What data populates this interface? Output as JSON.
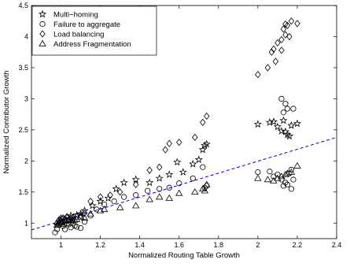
{
  "chart_data": {
    "type": "scatter",
    "xlabel": "Normalized Routing Table Growth",
    "ylabel": "Normalized Contributor Growth",
    "xlim": [
      0.85,
      2.4
    ],
    "ylim": [
      0.75,
      4.5
    ],
    "xticks": [
      1,
      1.2,
      1.4,
      1.6,
      1.8,
      2,
      2.2,
      2.4
    ],
    "yticks": [
      1,
      1.5,
      2,
      2.5,
      3,
      3.5,
      4,
      4.5
    ],
    "xtick_labels": [
      "1",
      "1.2",
      "1.4",
      "1.6",
      "1.8",
      "2",
      "2.2",
      "2.4"
    ],
    "ytick_labels": [
      "1",
      "1.5",
      "2",
      "2.5",
      "3",
      "3.5",
      "4",
      "4.5"
    ],
    "grid": false,
    "legend_position": "top-left",
    "series": [
      {
        "name": "Multi−homing",
        "marker": "star",
        "points": [
          [
            0.98,
            0.97
          ],
          [
            0.99,
            1.02
          ],
          [
            1.0,
            1.05
          ],
          [
            1.01,
            1.08
          ],
          [
            1.02,
            1.04
          ],
          [
            1.03,
            1.1
          ],
          [
            1.04,
            1.06
          ],
          [
            1.05,
            1.12
          ],
          [
            1.06,
            1.09
          ],
          [
            1.08,
            1.13
          ],
          [
            1.1,
            1.15
          ],
          [
            1.12,
            1.2
          ],
          [
            1.16,
            1.28
          ],
          [
            1.2,
            1.35
          ],
          [
            1.24,
            1.4
          ],
          [
            1.28,
            1.55
          ],
          [
            1.32,
            1.65
          ],
          [
            1.38,
            1.7
          ],
          [
            1.45,
            1.65
          ],
          [
            1.5,
            1.72
          ],
          [
            1.55,
            1.78
          ],
          [
            1.59,
            1.98
          ],
          [
            1.62,
            1.82
          ],
          [
            1.67,
            1.95
          ],
          [
            1.7,
            2.02
          ],
          [
            1.72,
            2.18
          ],
          [
            1.73,
            2.25
          ],
          [
            1.74,
            2.27
          ],
          [
            2.0,
            2.59
          ],
          [
            2.06,
            2.62
          ],
          [
            2.08,
            2.63
          ],
          [
            2.1,
            2.55
          ],
          [
            2.12,
            2.48
          ],
          [
            2.13,
            2.65
          ],
          [
            2.14,
            2.47
          ],
          [
            2.15,
            2.42
          ],
          [
            2.16,
            2.4
          ],
          [
            2.17,
            2.57
          ],
          [
            2.2,
            2.6
          ]
        ]
      },
      {
        "name": "Failure to aggregate",
        "marker": "circle",
        "points": [
          [
            0.97,
            0.85
          ],
          [
            0.98,
            0.9
          ],
          [
            0.99,
            0.97
          ],
          [
            1.0,
            1.0
          ],
          [
            1.01,
            0.95
          ],
          [
            1.02,
            0.9
          ],
          [
            1.03,
            1.05
          ],
          [
            1.04,
            0.98
          ],
          [
            1.05,
            0.93
          ],
          [
            1.06,
            1.0
          ],
          [
            1.07,
            0.96
          ],
          [
            1.08,
            0.94
          ],
          [
            1.1,
            0.92
          ],
          [
            1.12,
            1.02
          ],
          [
            1.15,
            1.12
          ],
          [
            1.18,
            1.22
          ],
          [
            1.22,
            1.3
          ],
          [
            1.27,
            1.35
          ],
          [
            1.32,
            1.42
          ],
          [
            1.38,
            1.45
          ],
          [
            1.44,
            1.52
          ],
          [
            1.5,
            1.55
          ],
          [
            1.55,
            1.57
          ],
          [
            1.6,
            1.64
          ],
          [
            1.67,
            1.72
          ],
          [
            1.72,
            1.9
          ],
          [
            1.73,
            1.57
          ],
          [
            1.74,
            1.6
          ],
          [
            2.0,
            1.82
          ],
          [
            2.06,
            1.83
          ],
          [
            2.08,
            1.75
          ],
          [
            2.1,
            1.78
          ],
          [
            2.12,
            1.7
          ],
          [
            2.13,
            1.6
          ],
          [
            2.14,
            1.65
          ],
          [
            2.15,
            1.62
          ],
          [
            2.16,
            1.8
          ],
          [
            2.17,
            1.86
          ],
          [
            2.18,
            1.7
          ],
          [
            2.12,
            3.0
          ],
          [
            2.14,
            2.92
          ],
          [
            2.15,
            2.84
          ],
          [
            2.18,
            2.84
          ],
          [
            2.13,
            2.78
          ],
          [
            2.17,
            1.55
          ]
        ]
      },
      {
        "name": "Load balancing",
        "marker": "diamond",
        "points": [
          [
            0.98,
            1.0
          ],
          [
            0.99,
            1.05
          ],
          [
            1.0,
            1.08
          ],
          [
            1.01,
            1.02
          ],
          [
            1.02,
            1.06
          ],
          [
            1.03,
            1.1
          ],
          [
            1.04,
            1.05
          ],
          [
            1.05,
            1.08
          ],
          [
            1.06,
            1.05
          ],
          [
            1.08,
            1.1
          ],
          [
            1.1,
            1.12
          ],
          [
            1.12,
            1.16
          ],
          [
            1.15,
            1.35
          ],
          [
            1.2,
            1.42
          ],
          [
            1.25,
            1.45
          ],
          [
            1.3,
            1.5
          ],
          [
            1.38,
            1.62
          ],
          [
            1.45,
            1.85
          ],
          [
            1.5,
            1.9
          ],
          [
            1.53,
            2.18
          ],
          [
            1.55,
            2.28
          ],
          [
            1.6,
            2.3
          ],
          [
            1.68,
            2.38
          ],
          [
            1.72,
            2.62
          ],
          [
            1.74,
            2.72
          ],
          [
            2.0,
            3.39
          ],
          [
            2.05,
            3.5
          ],
          [
            2.07,
            3.75
          ],
          [
            2.08,
            3.8
          ],
          [
            2.09,
            3.6
          ],
          [
            2.1,
            3.9
          ],
          [
            2.12,
            3.78
          ],
          [
            2.13,
            4.12
          ],
          [
            2.14,
            4.03
          ],
          [
            2.15,
            4.18
          ],
          [
            2.16,
            4.0
          ],
          [
            2.17,
            4.25
          ],
          [
            2.2,
            4.21
          ],
          [
            2.12,
            3.95
          ],
          [
            2.14,
            4.2
          ]
        ]
      },
      {
        "name": "Address Fragmentation",
        "marker": "triangle",
        "points": [
          [
            0.98,
            0.97
          ],
          [
            0.99,
            1.0
          ],
          [
            1.0,
            1.02
          ],
          [
            1.01,
            0.98
          ],
          [
            1.02,
            1.03
          ],
          [
            1.03,
            1.0
          ],
          [
            1.05,
            1.04
          ],
          [
            1.07,
            1.05
          ],
          [
            1.08,
            1.06
          ],
          [
            1.1,
            1.1
          ],
          [
            1.12,
            1.08
          ],
          [
            1.15,
            1.15
          ],
          [
            1.2,
            1.2
          ],
          [
            1.22,
            1.22
          ],
          [
            1.3,
            1.25
          ],
          [
            1.38,
            1.28
          ],
          [
            1.45,
            1.38
          ],
          [
            1.5,
            1.42
          ],
          [
            1.55,
            1.4
          ],
          [
            1.6,
            1.48
          ],
          [
            1.68,
            1.5
          ],
          [
            1.72,
            1.55
          ],
          [
            1.73,
            1.52
          ],
          [
            1.74,
            1.62
          ],
          [
            2.0,
            1.72
          ],
          [
            2.05,
            1.7
          ],
          [
            2.08,
            1.68
          ],
          [
            2.1,
            1.72
          ],
          [
            2.12,
            1.75
          ],
          [
            2.14,
            1.78
          ],
          [
            2.15,
            1.8
          ],
          [
            2.17,
            1.82
          ],
          [
            2.2,
            1.92
          ]
        ]
      },
      {
        "name": "",
        "marker": "dashed-line",
        "color": "#0000cc",
        "points": [
          [
            0.85,
            0.89
          ],
          [
            2.4,
            2.38
          ]
        ]
      }
    ]
  },
  "colors": {
    "axis": "#000000",
    "marker": "#000000",
    "trend_line": "#0000cc"
  }
}
